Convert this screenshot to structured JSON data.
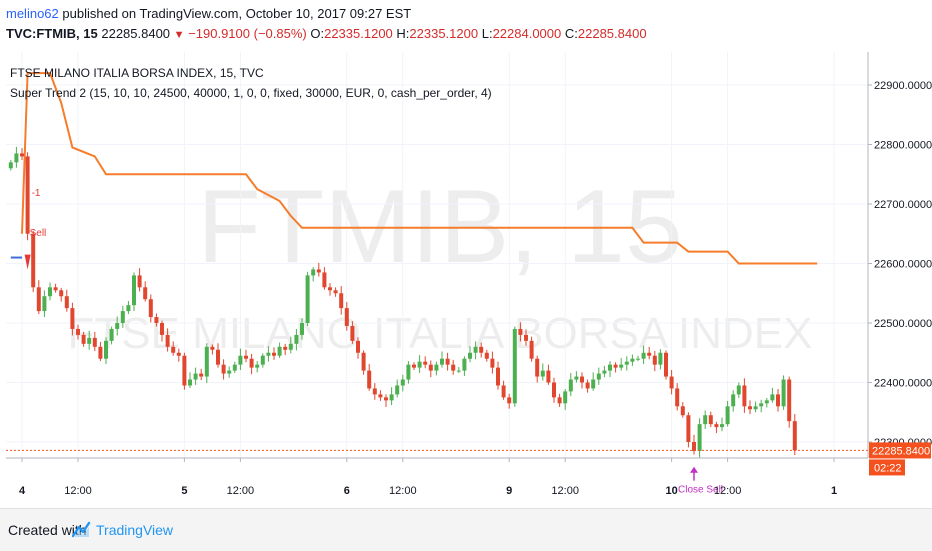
{
  "header": {
    "user": "melino62",
    "published_text": "published on TradingView.com, October 10, 2017 09:27 EST",
    "symbol": "TVC:FTMIB, 15",
    "last": "22285.8400",
    "change": "−190.9100 (−0.85%)",
    "o_label": "O:",
    "o_value": "22335.1200",
    "h_label": "H:",
    "h_value": "22335.1200",
    "l_label": "L:",
    "l_value": "22284.0000",
    "c_label": "C:",
    "c_value": "22285.8400"
  },
  "legend": {
    "title": "FTSE MILANO ITALIA BORSA INDEX, 15, TVC",
    "study": "Super Trend 2 (15, 10, 10, 24500, 40000, 1, 0, 0, fixed, 30000, EUR, 0, cash_per_order, 4)"
  },
  "watermark": {
    "symbol": "FTMIB, 15",
    "name": "FTSE MILANO ITALIA BORSA INDEX"
  },
  "price_badge": {
    "value": "22285.8400",
    "countdown": "02:22"
  },
  "signals": [
    {
      "label": "Sell",
      "qty": "-1",
      "bar": 3
    },
    {
      "label": "Close Sell",
      "qty": "",
      "bar": 122
    }
  ],
  "footer": {
    "created_with": "Created with",
    "brand": "TradingView"
  },
  "colors": {
    "up": "#4caf50",
    "down": "#e1462e",
    "supertrend": "#f57c2b",
    "supertrend_up": "#3c6dd8",
    "signal_sell": "#e53935",
    "signal_close": "#c42fc4",
    "last_price": "#f4511e"
  },
  "chart_data": {
    "type": "candlestick",
    "ylim": [
      22225,
      22945
    ],
    "y_ticks": [
      22900,
      22800,
      22700,
      22600,
      22500,
      22400,
      22300
    ],
    "y_tick_labels": [
      "22900.0000",
      "22800.0000",
      "22700.0000",
      "22600.0000",
      "22500.0000",
      "22400.0000",
      "22300.0000"
    ],
    "x_ticks": [
      {
        "label": "4",
        "bar": 2
      },
      {
        "label": "12:00",
        "bar": 12
      },
      {
        "label": "5",
        "bar": 31
      },
      {
        "label": "12:00",
        "bar": 41
      },
      {
        "label": "6",
        "bar": 60
      },
      {
        "label": "12:00",
        "bar": 70
      },
      {
        "label": "9",
        "bar": 89
      },
      {
        "label": "12:00",
        "bar": 99
      },
      {
        "label": "10",
        "bar": 118
      },
      {
        "label": "12:00",
        "bar": 128
      },
      {
        "label": "1",
        "bar": 147
      }
    ],
    "last_price": 22285.84,
    "closes": [
      22770,
      22785,
      22780,
      22650,
      22560,
      22520,
      22545,
      22560,
      22555,
      22545,
      22525,
      22490,
      22480,
      22465,
      22475,
      22460,
      22440,
      22470,
      22490,
      22500,
      22520,
      22530,
      22580,
      22560,
      22540,
      22510,
      22500,
      22480,
      22460,
      22450,
      22445,
      22395,
      22405,
      22415,
      22410,
      22460,
      22455,
      22430,
      22415,
      22420,
      22430,
      22445,
      22440,
      22425,
      22430,
      22445,
      22450,
      22445,
      22460,
      22455,
      22465,
      22480,
      22500,
      22580,
      22590,
      22585,
      22560,
      22555,
      22550,
      22525,
      22495,
      22470,
      22450,
      22420,
      22390,
      22380,
      22375,
      22370,
      22380,
      22395,
      22405,
      22430,
      22425,
      22435,
      22430,
      22420,
      22430,
      22440,
      22430,
      22420,
      22420,
      22440,
      22450,
      22460,
      22450,
      22440,
      22425,
      22395,
      22375,
      22365,
      22490,
      22480,
      22470,
      22440,
      22410,
      22420,
      22400,
      22375,
      22365,
      22385,
      22405,
      22410,
      22400,
      22390,
      22405,
      22415,
      22420,
      22430,
      22425,
      22430,
      22435,
      22440,
      22440,
      22450,
      22445,
      22430,
      22450,
      22410,
      22390,
      22360,
      22345,
      22300,
      22285,
      22330,
      22345,
      22330,
      22325,
      22330,
      22360,
      22380,
      22395,
      22360,
      22355,
      22360,
      22365,
      22370,
      22380,
      22360,
      22405,
      22335,
      22286
    ],
    "supertrend": [
      {
        "bar": 0,
        "value": 22610
      },
      {
        "bar": 2,
        "value": 22610
      },
      {
        "bar": 3,
        "value": 22920
      },
      {
        "bar": 7,
        "value": 22920
      },
      {
        "bar": 9,
        "value": 22870
      },
      {
        "bar": 11,
        "value": 22795
      },
      {
        "bar": 15,
        "value": 22780
      },
      {
        "bar": 17,
        "value": 22750
      },
      {
        "bar": 42,
        "value": 22750
      },
      {
        "bar": 44,
        "value": 22725
      },
      {
        "bar": 48,
        "value": 22705
      },
      {
        "bar": 50,
        "value": 22680
      },
      {
        "bar": 52,
        "value": 22660
      },
      {
        "bar": 111,
        "value": 22660
      },
      {
        "bar": 113,
        "value": 22635
      },
      {
        "bar": 119,
        "value": 22635
      },
      {
        "bar": 121,
        "value": 22620
      },
      {
        "bar": 128,
        "value": 22620
      },
      {
        "bar": 130,
        "value": 22600
      },
      {
        "bar": 144,
        "value": 22600
      }
    ]
  }
}
